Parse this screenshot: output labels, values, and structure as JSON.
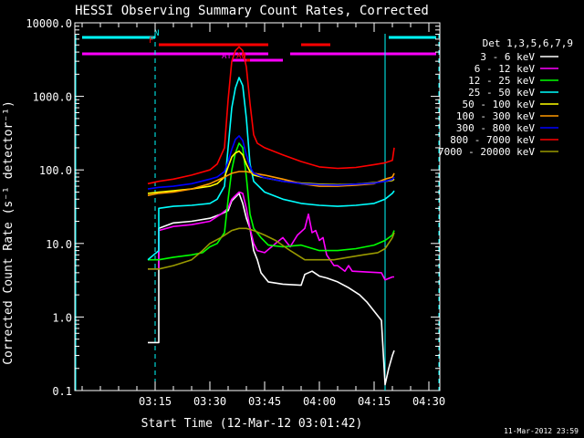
{
  "chart_data": {
    "type": "line",
    "title": "HESSI Observing Summary Count Rates, Corrected",
    "xlabel": "Start Time (12-Mar-12 03:01:42)",
    "ylabel": "Corrected Count Rate (s⁻¹ detector⁻¹)",
    "yscale": "log",
    "xlim": [
      "03:07",
      "04:37"
    ],
    "ylim": [
      0.1,
      10000
    ],
    "xticks": [
      {
        "t": 15,
        "label": "03:15"
      },
      {
        "t": 30,
        "label": "03:30"
      },
      {
        "t": 45,
        "label": "03:45"
      },
      {
        "t": 60,
        "label": "04:00"
      },
      {
        "t": 75,
        "label": "04:15"
      },
      {
        "t": 90,
        "label": "04:30"
      }
    ],
    "yticks": [
      {
        "v": 0.1,
        "label": "0.1"
      },
      {
        "v": 1,
        "label": "1.0"
      },
      {
        "v": 10,
        "label": "10.0"
      },
      {
        "v": 100,
        "label": "100.0"
      },
      {
        "v": 1000,
        "label": "1000.0"
      },
      {
        "v": 10000,
        "label": "10000.0"
      }
    ],
    "legend_title": "Det 1,3,5,6,7,9",
    "legend_position": "right",
    "series": [
      {
        "name": "3 - 6 keV",
        "color": "#ffffff",
        "points": [
          [
            13,
            0.45
          ],
          [
            15,
            0.45
          ],
          [
            16,
            0.45
          ],
          [
            16,
            16
          ],
          [
            20,
            19
          ],
          [
            25,
            20
          ],
          [
            30,
            22
          ],
          [
            33,
            25
          ],
          [
            35,
            28
          ],
          [
            36,
            38
          ],
          [
            38,
            48
          ],
          [
            39,
            35
          ],
          [
            40,
            22
          ],
          [
            41,
            16
          ],
          [
            42,
            8
          ],
          [
            43,
            6
          ],
          [
            44,
            4
          ],
          [
            46,
            3
          ],
          [
            50,
            2.8
          ],
          [
            55,
            2.7
          ],
          [
            56,
            3.8
          ],
          [
            58,
            4.2
          ],
          [
            60,
            3.6
          ],
          [
            62,
            3.4
          ],
          [
            65,
            3.0
          ],
          [
            68,
            2.5
          ],
          [
            71,
            2.0
          ],
          [
            73,
            1.6
          ],
          [
            75,
            1.2
          ],
          [
            77,
            0.9
          ],
          [
            78,
            0.12
          ],
          [
            79,
            0.2
          ],
          [
            80,
            0.3
          ],
          [
            80.5,
            0.35
          ]
        ]
      },
      {
        "name": "6 - 12 keV",
        "color": "#ff00ff",
        "points": [
          [
            13,
            4.5
          ],
          [
            15,
            4.5
          ],
          [
            16,
            4.5
          ],
          [
            16,
            15
          ],
          [
            20,
            17
          ],
          [
            25,
            18
          ],
          [
            30,
            20
          ],
          [
            33,
            25
          ],
          [
            35,
            30
          ],
          [
            36,
            40
          ],
          [
            38,
            50
          ],
          [
            39,
            48
          ],
          [
            40,
            30
          ],
          [
            41,
            16
          ],
          [
            42,
            10
          ],
          [
            43,
            8
          ],
          [
            45,
            7.5
          ],
          [
            48,
            10
          ],
          [
            50,
            12
          ],
          [
            52,
            9
          ],
          [
            54,
            13
          ],
          [
            56,
            16
          ],
          [
            57,
            25
          ],
          [
            58,
            14
          ],
          [
            59,
            15
          ],
          [
            60,
            11
          ],
          [
            61,
            12
          ],
          [
            62,
            7
          ],
          [
            64,
            5
          ],
          [
            65,
            5
          ],
          [
            67,
            4.2
          ],
          [
            68,
            5
          ],
          [
            69,
            4.2
          ],
          [
            77,
            4
          ],
          [
            78,
            3.2
          ],
          [
            80,
            3.5
          ],
          [
            80.5,
            3.5
          ]
        ]
      },
      {
        "name": "12 - 25 keV",
        "color": "#00ff00",
        "points": [
          [
            13,
            6
          ],
          [
            16,
            6
          ],
          [
            20,
            6.5
          ],
          [
            25,
            7
          ],
          [
            28,
            7.5
          ],
          [
            30,
            9
          ],
          [
            32,
            10
          ],
          [
            34,
            14
          ],
          [
            35,
            40
          ],
          [
            36,
            100
          ],
          [
            37,
            170
          ],
          [
            38,
            230
          ],
          [
            39,
            200
          ],
          [
            40,
            80
          ],
          [
            41,
            25
          ],
          [
            42,
            16
          ],
          [
            44,
            12
          ],
          [
            46,
            9.5
          ],
          [
            50,
            9
          ],
          [
            55,
            9.5
          ],
          [
            60,
            8
          ],
          [
            65,
            8
          ],
          [
            70,
            8.5
          ],
          [
            75,
            9.5
          ],
          [
            78,
            11
          ],
          [
            80,
            13
          ],
          [
            80.5,
            15
          ]
        ]
      },
      {
        "name": "25 - 50 keV",
        "color": "#00ffff",
        "points": [
          [
            13,
            6
          ],
          [
            16,
            8
          ],
          [
            16,
            30
          ],
          [
            20,
            32
          ],
          [
            25,
            33
          ],
          [
            30,
            35
          ],
          [
            32,
            40
          ],
          [
            34,
            60
          ],
          [
            35,
            200
          ],
          [
            36,
            700
          ],
          [
            37,
            1300
          ],
          [
            38,
            1800
          ],
          [
            39,
            1400
          ],
          [
            40,
            500
          ],
          [
            41,
            120
          ],
          [
            42,
            70
          ],
          [
            45,
            50
          ],
          [
            50,
            40
          ],
          [
            55,
            35
          ],
          [
            60,
            33
          ],
          [
            65,
            32
          ],
          [
            70,
            33
          ],
          [
            75,
            35
          ],
          [
            78,
            40
          ],
          [
            80,
            48
          ],
          [
            80.5,
            52
          ]
        ]
      },
      {
        "name": "50 - 100 keV",
        "color": "#ffff00",
        "points": [
          [
            13,
            48
          ],
          [
            16,
            50
          ],
          [
            20,
            52
          ],
          [
            25,
            55
          ],
          [
            30,
            60
          ],
          [
            32,
            65
          ],
          [
            34,
            80
          ],
          [
            35,
            110
          ],
          [
            36,
            150
          ],
          [
            37,
            170
          ],
          [
            38,
            180
          ],
          [
            39,
            160
          ],
          [
            40,
            120
          ],
          [
            41,
            95
          ],
          [
            42,
            85
          ],
          [
            45,
            78
          ],
          [
            50,
            70
          ],
          [
            55,
            66
          ],
          [
            60,
            64
          ],
          [
            65,
            63
          ],
          [
            70,
            64
          ],
          [
            75,
            67
          ],
          [
            78,
            70
          ],
          [
            80,
            72
          ],
          [
            80.5,
            75
          ]
        ]
      },
      {
        "name": "100 - 300 keV",
        "color": "#ff9900",
        "points": [
          [
            13,
            45
          ],
          [
            16,
            48
          ],
          [
            20,
            50
          ],
          [
            25,
            55
          ],
          [
            30,
            65
          ],
          [
            34,
            80
          ],
          [
            36,
            90
          ],
          [
            38,
            95
          ],
          [
            40,
            95
          ],
          [
            42,
            90
          ],
          [
            45,
            85
          ],
          [
            50,
            75
          ],
          [
            55,
            65
          ],
          [
            60,
            60
          ],
          [
            65,
            60
          ],
          [
            70,
            62
          ],
          [
            75,
            65
          ],
          [
            78,
            75
          ],
          [
            80,
            80
          ],
          [
            80.5,
            90
          ]
        ]
      },
      {
        "name": "300 - 800 keV",
        "color": "#0000ff",
        "points": [
          [
            13,
            55
          ],
          [
            16,
            58
          ],
          [
            20,
            60
          ],
          [
            25,
            65
          ],
          [
            30,
            75
          ],
          [
            32,
            80
          ],
          [
            34,
            95
          ],
          [
            35,
            130
          ],
          [
            36,
            190
          ],
          [
            37,
            260
          ],
          [
            38,
            290
          ],
          [
            39,
            250
          ],
          [
            40,
            160
          ],
          [
            41,
            110
          ],
          [
            42,
            90
          ],
          [
            45,
            78
          ],
          [
            50,
            70
          ],
          [
            55,
            65
          ],
          [
            60,
            63
          ],
          [
            65,
            62
          ],
          [
            70,
            64
          ],
          [
            75,
            66
          ],
          [
            78,
            70
          ],
          [
            80,
            74
          ],
          [
            80.5,
            80
          ]
        ]
      },
      {
        "name": "800 - 7000 keV",
        "color": "#ff0000",
        "points": [
          [
            13,
            65
          ],
          [
            16,
            70
          ],
          [
            20,
            75
          ],
          [
            25,
            85
          ],
          [
            30,
            100
          ],
          [
            32,
            120
          ],
          [
            34,
            200
          ],
          [
            35,
            900
          ],
          [
            36,
            3000
          ],
          [
            37,
            4200
          ],
          [
            38,
            4700
          ],
          [
            39,
            4200
          ],
          [
            40,
            2500
          ],
          [
            41,
            800
          ],
          [
            42,
            300
          ],
          [
            43,
            230
          ],
          [
            45,
            200
          ],
          [
            50,
            160
          ],
          [
            55,
            130
          ],
          [
            60,
            110
          ],
          [
            65,
            105
          ],
          [
            70,
            108
          ],
          [
            75,
            118
          ],
          [
            78,
            125
          ],
          [
            80,
            135
          ],
          [
            80.5,
            200
          ]
        ]
      },
      {
        "name": "7000 - 20000 keV",
        "color": "#999900",
        "points": [
          [
            13,
            4.5
          ],
          [
            16,
            4.5
          ],
          [
            20,
            5
          ],
          [
            25,
            6
          ],
          [
            28,
            8
          ],
          [
            30,
            10
          ],
          [
            33,
            12
          ],
          [
            36,
            15
          ],
          [
            38,
            16
          ],
          [
            40,
            16
          ],
          [
            42,
            15
          ],
          [
            45,
            13
          ],
          [
            48,
            11
          ],
          [
            52,
            8
          ],
          [
            56,
            6
          ],
          [
            60,
            6
          ],
          [
            64,
            6
          ],
          [
            68,
            6.5
          ],
          [
            72,
            7
          ],
          [
            76,
            7.5
          ],
          [
            78,
            8.5
          ],
          [
            80,
            12
          ],
          [
            80.5,
            14
          ]
        ]
      }
    ],
    "bars": [
      {
        "label": "N",
        "color": "#00ffff",
        "row": "top",
        "segments": [
          [
            -5,
            15
          ],
          [
            79,
            92
          ]
        ]
      },
      {
        "label": "F",
        "color": "#ff0000",
        "row": "second",
        "segments": [
          [
            16,
            46
          ],
          [
            55,
            63
          ]
        ]
      },
      {
        "label": "",
        "color": "#ff00ff",
        "row": "third",
        "segments": [
          [
            -5,
            46
          ],
          [
            52,
            92
          ]
        ]
      },
      {
        "label": "AT",
        "color": "#ff00ff",
        "row": "fourth",
        "segments": [
          [
            36,
            50
          ]
        ]
      },
      {
        "label": "AO",
        "color": "#ff0000",
        "row": "fourth",
        "segments": [
          [
            40,
            41
          ]
        ]
      }
    ],
    "vlines": [
      {
        "t": -7,
        "style": "solid",
        "color": "#00ffff"
      },
      {
        "t": 15,
        "style": "dashed",
        "color": "#00ffff"
      },
      {
        "t": 78,
        "style": "solid",
        "color": "#00ffff"
      },
      {
        "t": 93,
        "style": "dashed",
        "color": "#00ffff"
      }
    ],
    "footer_date": "11-Mar-2012 23:59"
  }
}
